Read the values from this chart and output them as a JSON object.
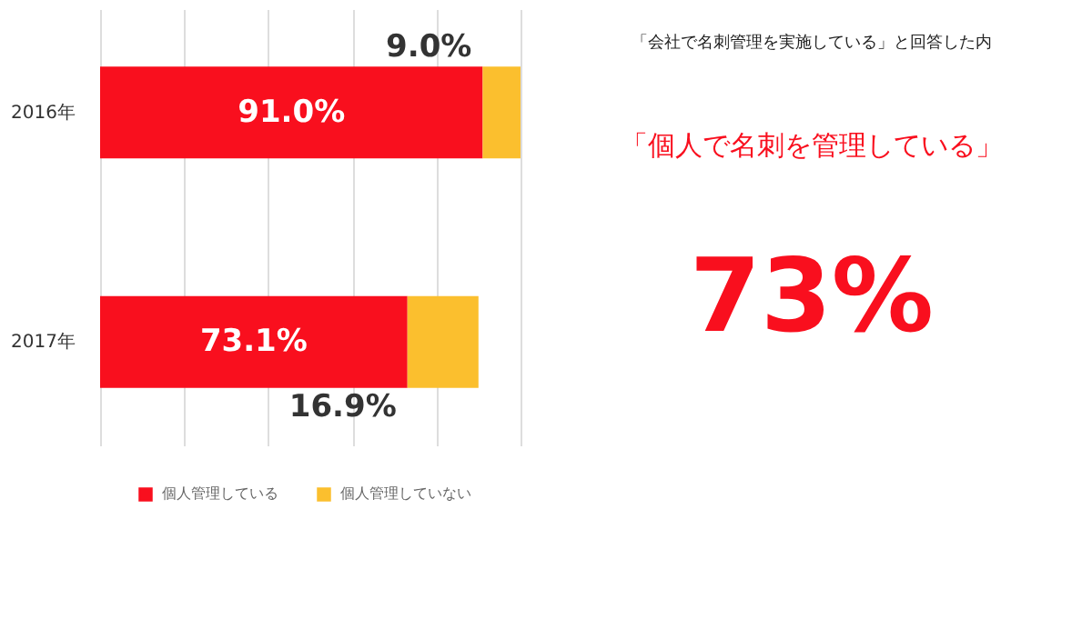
{
  "chart_data": {
    "type": "bar",
    "orientation": "horizontal",
    "stacked": true,
    "categories": [
      "2016年",
      "2017年"
    ],
    "series": [
      {
        "name": "個人管理している",
        "color": "#f90f1e",
        "values": [
          91.0,
          73.1
        ],
        "value_labels": [
          "91.0%",
          "73.1%"
        ]
      },
      {
        "name": "個人管理していない",
        "color": "#fbbf2e",
        "values": [
          9.0,
          16.9
        ],
        "value_labels": [
          "9.0%",
          "16.9%"
        ]
      }
    ],
    "xlim": [
      0,
      100
    ],
    "tick_labels": "y",
    "grid": "x",
    "legend": "bottom left",
    "annotations": [
      "「会社で名刺管理を実施している」と回答した内",
      "「個人で名刺を管理している」",
      "73%"
    ]
  }
}
